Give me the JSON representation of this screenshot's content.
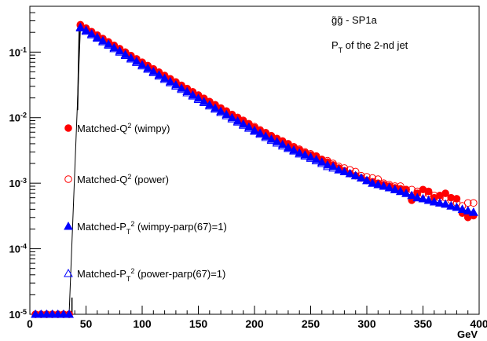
{
  "chart_data": {
    "type": "scatter",
    "yscale": "log",
    "xlim": [
      0,
      400
    ],
    "ylim": [
      1e-05,
      0.5
    ],
    "grid": false,
    "legend_position": "left",
    "xlabel": "GeV",
    "ylabel": "",
    "annotations": [
      "g̃g̃ - SP1a",
      "P_T of the 2-nd jet"
    ],
    "x_ticks": [
      0,
      50,
      100,
      150,
      200,
      250,
      300,
      350,
      400
    ],
    "y_ticks": [
      {
        "value": 1e-05,
        "label": "10^-5"
      },
      {
        "value": 0.0001,
        "label": "10^-4"
      },
      {
        "value": 0.001,
        "label": "10^-3"
      },
      {
        "value": 0.01,
        "label": "10^-2"
      },
      {
        "value": 0.1,
        "label": "10^-1"
      }
    ],
    "x": [
      5,
      10,
      15,
      20,
      25,
      30,
      35,
      45,
      50,
      55,
      60,
      65,
      70,
      75,
      80,
      85,
      90,
      95,
      100,
      105,
      110,
      115,
      120,
      125,
      130,
      135,
      140,
      145,
      150,
      155,
      160,
      165,
      170,
      175,
      180,
      185,
      190,
      195,
      200,
      205,
      210,
      215,
      220,
      225,
      230,
      235,
      240,
      245,
      250,
      255,
      260,
      265,
      270,
      275,
      280,
      285,
      290,
      295,
      300,
      305,
      310,
      315,
      320,
      325,
      330,
      335,
      340,
      345,
      350,
      355,
      360,
      365,
      370,
      375,
      380,
      385,
      390,
      395
    ],
    "series": [
      {
        "name": "Matched-Q^2 (wimpy)",
        "marker": "circle-filled",
        "color": "#ff0000",
        "values": [
          1e-05,
          1e-05,
          1e-05,
          1e-05,
          1e-05,
          1e-05,
          1e-05,
          0.262,
          0.232,
          0.205,
          0.182,
          0.161,
          0.143,
          0.127,
          0.113,
          0.1,
          0.0888,
          0.0789,
          0.0701,
          0.0624,
          0.0555,
          0.0494,
          0.044,
          0.0392,
          0.035,
          0.0312,
          0.0278,
          0.0248,
          0.0221,
          0.0197,
          0.0176,
          0.0157,
          0.014,
          0.0125,
          0.0111,
          0.0099,
          0.00885,
          0.0079,
          0.00705,
          0.0063,
          0.0058,
          0.0052,
          0.0047,
          0.0043,
          0.0039,
          0.0035,
          0.0032,
          0.0029,
          0.0027,
          0.0026,
          0.0023,
          0.0021,
          0.0019,
          0.0017,
          0.00155,
          0.0014,
          0.0013,
          0.0012,
          0.0011,
          0.00105,
          0.001,
          0.00095,
          0.0009,
          0.00085,
          0.00082,
          0.0008,
          0.00055,
          0.0007,
          0.0008,
          0.00075,
          0.0006,
          0.00065,
          0.0007,
          0.0006,
          0.00058,
          0.00035,
          0.0003,
          0.00032
        ]
      },
      {
        "name": "Matched-Q^2 (power)",
        "marker": "circle-open",
        "color": "#ff0000",
        "values": [
          1e-05,
          1e-05,
          1e-05,
          1e-05,
          1e-05,
          1e-05,
          1e-05,
          0.255,
          0.228,
          0.201,
          0.179,
          0.159,
          0.141,
          0.125,
          0.111,
          0.099,
          0.0878,
          0.078,
          0.0693,
          0.0617,
          0.0549,
          0.0489,
          0.0436,
          0.0388,
          0.0347,
          0.0309,
          0.0276,
          0.0246,
          0.022,
          0.0196,
          0.0175,
          0.0157,
          0.014,
          0.0126,
          0.0112,
          0.0101,
          0.0091,
          0.0081,
          0.0073,
          0.0065,
          0.0059,
          0.0053,
          0.0048,
          0.0044,
          0.004,
          0.0036,
          0.0033,
          0.003,
          0.0028,
          0.0025,
          0.0023,
          0.0022,
          0.002,
          0.0018,
          0.0017,
          0.0016,
          0.0015,
          0.0013,
          0.00125,
          0.0012,
          0.00115,
          0.001,
          0.00095,
          0.0009,
          0.0009,
          0.0008,
          0.0008,
          0.00075,
          0.0007,
          0.0007,
          0.00065,
          0.0006,
          0.0006,
          0.00055,
          0.0005,
          0.00045,
          0.0005,
          0.0005
        ]
      },
      {
        "name": "Matched-P_T^2 (wimpy-parp(67)=1)",
        "marker": "triangle-filled",
        "color": "#0000ff",
        "values": [
          1e-05,
          1e-05,
          1e-05,
          1e-05,
          1e-05,
          1e-05,
          1e-05,
          0.24,
          0.215,
          0.19,
          0.168,
          0.149,
          0.132,
          0.117,
          0.104,
          0.092,
          0.0815,
          0.0723,
          0.0641,
          0.0569,
          0.0505,
          0.0449,
          0.0399,
          0.0355,
          0.0316,
          0.0281,
          0.025,
          0.0222,
          0.0198,
          0.0176,
          0.0157,
          0.014,
          0.0125,
          0.0112,
          0.01,
          0.0089,
          0.008,
          0.0072,
          0.0064,
          0.0058,
          0.0052,
          0.0047,
          0.0043,
          0.0039,
          0.0035,
          0.0032,
          0.0029,
          0.0027,
          0.0025,
          0.0023,
          0.0021,
          0.0019,
          0.0018,
          0.0016,
          0.0015,
          0.0014,
          0.0013,
          0.0012,
          0.0011,
          0.001,
          0.00095,
          0.0009,
          0.00085,
          0.0008,
          0.00075,
          0.0007,
          0.00065,
          0.0006,
          0.00058,
          0.00055,
          0.00052,
          0.0005,
          0.00048,
          0.00045,
          0.00043,
          0.0004,
          0.00038,
          0.00036
        ]
      },
      {
        "name": "Matched-P_T^2 (power-parp(67)=1)",
        "marker": "triangle-open",
        "color": "#0000ff",
        "values": [
          1e-05,
          1e-05,
          1e-05,
          1e-05,
          1e-05,
          1e-05,
          1e-05,
          0.235,
          0.208,
          0.184,
          0.163,
          0.144,
          0.128,
          0.113,
          0.1,
          0.089,
          0.0788,
          0.0698,
          0.0619,
          0.0549,
          0.0487,
          0.0432,
          0.0384,
          0.0341,
          0.0303,
          0.027,
          0.024,
          0.0214,
          0.019,
          0.017,
          0.0151,
          0.0135,
          0.012,
          0.0107,
          0.0096,
          0.0086,
          0.0077,
          0.0069,
          0.0062,
          0.0056,
          0.005,
          0.0045,
          0.0041,
          0.0037,
          0.0034,
          0.0031,
          0.0028,
          0.0026,
          0.0024,
          0.0022,
          0.002,
          0.0018,
          0.0017,
          0.0016,
          0.0015,
          0.0014,
          0.0013,
          0.0012,
          0.0011,
          0.001,
          0.00095,
          0.0009,
          0.00085,
          0.0008,
          0.00075,
          0.0007,
          0.00065,
          0.0006,
          0.00058,
          0.00055,
          0.00052,
          0.0005,
          0.00048,
          0.00045,
          0.00043,
          0.0004,
          0.00038,
          0.00036
        ]
      }
    ]
  }
}
